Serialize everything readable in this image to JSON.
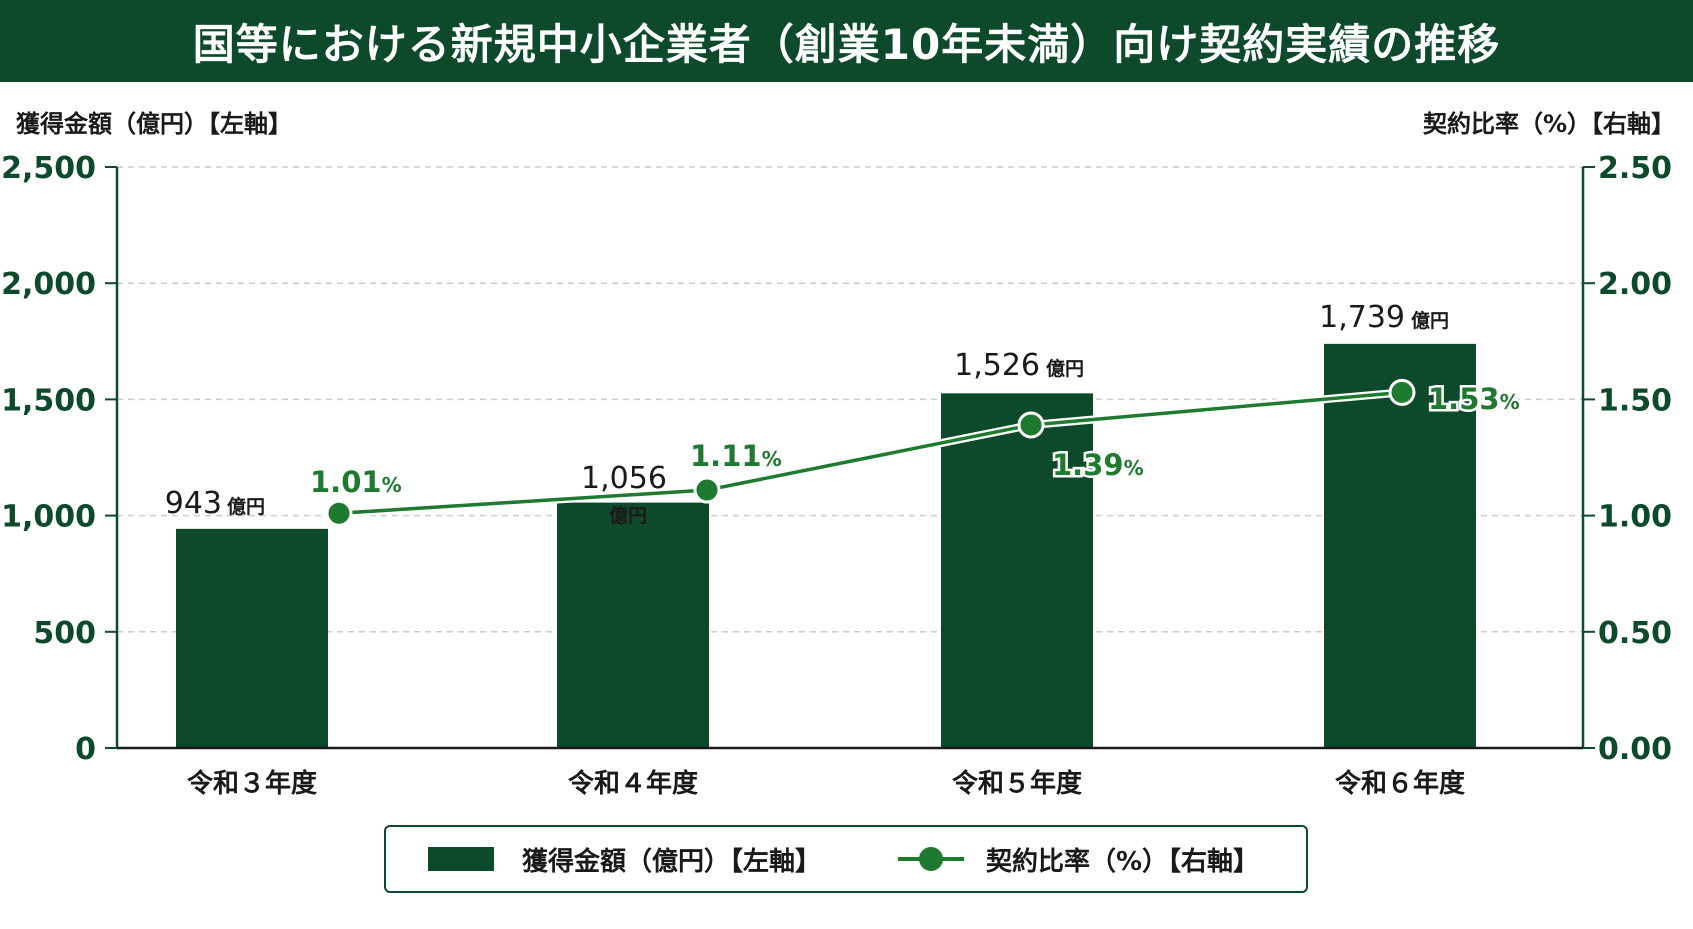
{
  "title": "国等における新規中小企業者（創業10年未満）向け契約実績の推移",
  "axes": {
    "left_title": "獲得金額（億円）【左軸】",
    "right_title": "契約比率（%）【右軸】"
  },
  "colors": {
    "bar": "#0c4a2b",
    "line": "#1e7a2e",
    "title_bg": "#0c4a2b",
    "axis_text": "#0c4a2b",
    "grid": "#cccccc"
  },
  "chart_data": {
    "type": "bar",
    "title": "国等における新規中小企業者（創業10年未満）向け契約実績の推移",
    "categories": [
      "令和３年度",
      "令和４年度",
      "令和５年度",
      "令和６年度"
    ],
    "series": [
      {
        "name": "獲得金額（億円）【左軸】",
        "type": "bar",
        "axis": "left",
        "values": [
          943,
          1056,
          1526,
          1739
        ],
        "labels": [
          "943",
          "1,056",
          "1,526",
          "1,739"
        ],
        "unit": "億円"
      },
      {
        "name": "契約比率（%）【右軸】",
        "type": "line",
        "axis": "right",
        "values": [
          1.01,
          1.11,
          1.39,
          1.53
        ],
        "labels": [
          "1.01",
          "1.11",
          "1.39",
          "1.53"
        ],
        "unit": "%"
      }
    ],
    "ylabel": "獲得金額（億円）【左軸】",
    "y2label": "契約比率（%）【右軸】",
    "ylim": [
      0,
      2500
    ],
    "y2lim": [
      0,
      2.5
    ],
    "yticks": [
      "0",
      "500",
      "1,000",
      "1,500",
      "2,000",
      "2,500"
    ],
    "y2ticks": [
      "0.00",
      "0.50",
      "1.00",
      "1.50",
      "2.00",
      "2.50"
    ],
    "grid": true,
    "legend": "bottom"
  },
  "legend": {
    "bar_label": "獲得金額（億円）【左軸】",
    "line_label": "契約比率（%）【右軸】"
  }
}
